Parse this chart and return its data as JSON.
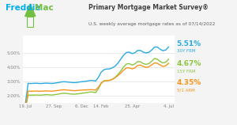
{
  "title": "Primary Mortgage Market Survey®",
  "subtitle": "U.S. weekly average mortgage rates as of 07/14/2022",
  "x_labels": [
    "19. Jul",
    "27. Sep",
    "6. Dec",
    "14. Feb",
    "25. Apr",
    "4. Jul"
  ],
  "ytick_labels": [
    "2.00%",
    "3.00%",
    "4.00%",
    "5.00%"
  ],
  "yticks": [
    2.0,
    3.0,
    4.0,
    5.0
  ],
  "ylim": [
    1.5,
    6.2
  ],
  "color_30y": "#29ABE2",
  "color_15y": "#8DC63F",
  "color_arm": "#F7941D",
  "label_30y": "5.51%",
  "label_15y": "4.67%",
  "label_arm": "4.35%",
  "sublabel_30y": "30Y FRM",
  "sublabel_15y": "15Y FRM",
  "sublabel_arm": "5/1 ARM",
  "bg_color": "#f4f4f4",
  "plot_bg": "#ffffff",
  "freddie_blue": "#00AEEF",
  "freddie_green": "#72BF44",
  "logo_text1": "Freddie",
  "logo_text2": "Mac",
  "title_color": "#404040",
  "subtitle_color": "#606060",
  "tick_color": "#808080",
  "grid_color": "#e0e0e0"
}
